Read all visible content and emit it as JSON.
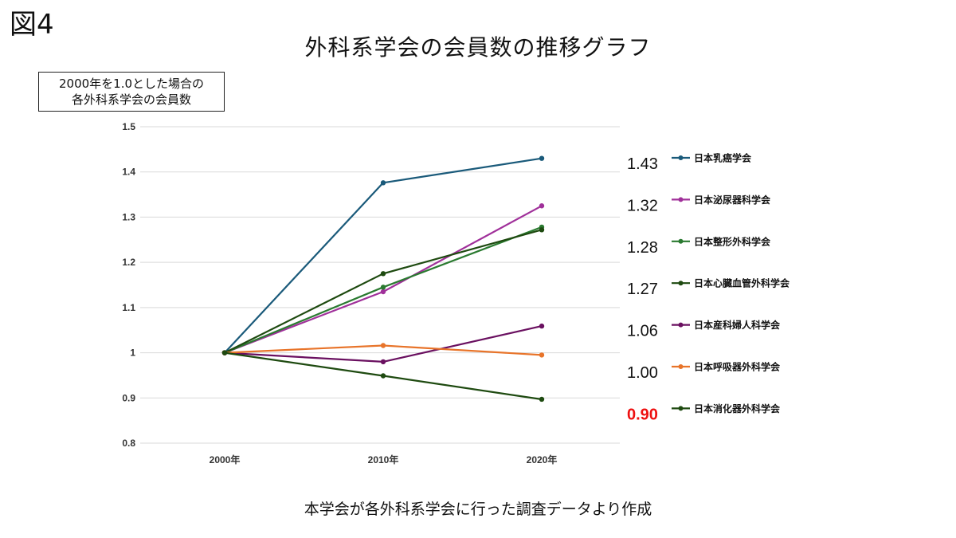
{
  "figure_label": "図4",
  "title": "外科系学会の会員数の推移グラフ",
  "note": [
    "2000年を1.0とした場合の",
    "各外科系学会の会員数"
  ],
  "source": "本学会が各外科系学会に行った調査データより作成",
  "chart_data": {
    "type": "line",
    "categories": [
      "2000年",
      "2010年",
      "2020年"
    ],
    "ylim": [
      0.8,
      1.5
    ],
    "y_ticks": [
      "0.8",
      "0.9",
      "1",
      "1.1",
      "1.2",
      "1.3",
      "1.4",
      "1.5"
    ],
    "grid": true,
    "legend_position": "right",
    "series": [
      {
        "name": "日本乳癌学会",
        "values": [
          1.0,
          1.376,
          1.43
        ],
        "color": "#1a5a7a",
        "end_label": "1.43"
      },
      {
        "name": "日本泌尿器科学会",
        "values": [
          1.0,
          1.135,
          1.325
        ],
        "color": "#a0309a",
        "end_label": "1.32"
      },
      {
        "name": "日本整形外科学会",
        "values": [
          1.0,
          1.145,
          1.278
        ],
        "color": "#2a7a30",
        "end_label": "1.28"
      },
      {
        "name": "日本心臓血管外科学会",
        "values": [
          1.0,
          1.175,
          1.272
        ],
        "color": "#1e4a10",
        "end_label": "1.27"
      },
      {
        "name": "日本産科婦人科学会",
        "values": [
          1.0,
          0.98,
          1.059
        ],
        "color": "#6a1060",
        "end_label": "1.06"
      },
      {
        "name": "日本呼吸器外科学会",
        "values": [
          1.0,
          1.016,
          0.995
        ],
        "color": "#e8742a",
        "end_label": "1.00"
      },
      {
        "name": "日本消化器外科学会",
        "values": [
          1.0,
          0.949,
          0.897
        ],
        "color": "#1e4a10",
        "end_label": "0.90",
        "highlight": true
      }
    ]
  }
}
